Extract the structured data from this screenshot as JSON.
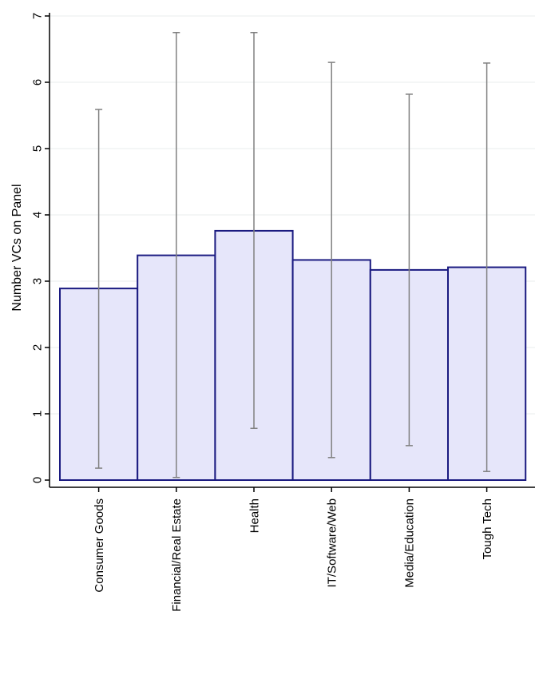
{
  "chart_data": {
    "type": "bar",
    "title": "",
    "xlabel": "",
    "ylabel": "Number VCs on Panel",
    "ylim": [
      0,
      7
    ],
    "yticks": [
      0,
      1,
      2,
      3,
      4,
      5,
      6,
      7
    ],
    "grid": true,
    "legend": "none",
    "categories": [
      "Consumer Goods",
      "Financial/Real Estate",
      "Health",
      "IT/Software/Web",
      "Media/Education",
      "Tough Tech"
    ],
    "series": [
      {
        "values": [
          2.89,
          3.39,
          3.76,
          3.32,
          3.17,
          3.21
        ],
        "error_low": [
          0.18,
          0.04,
          0.78,
          0.34,
          0.52,
          0.13
        ],
        "error_high": [
          5.59,
          6.75,
          6.75,
          6.3,
          5.82,
          6.29
        ]
      }
    ],
    "colors": {
      "bar_fill": "#e6e6fa",
      "bar_stroke": "#1a1a80",
      "error_bar": "#808080",
      "grid": "#e8eeee",
      "axis": "#000000"
    }
  }
}
